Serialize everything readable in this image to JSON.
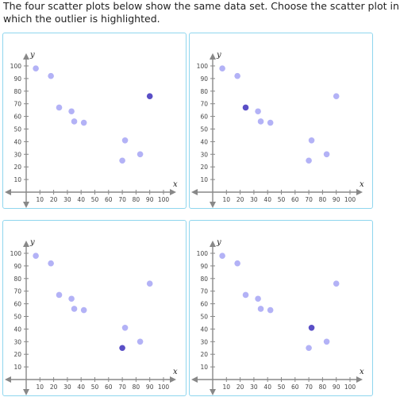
{
  "prompt": "The four scatter plots below show the same data set. Choose the scatter plot in which the outlier is highlighted.",
  "colors": {
    "point": "#b3b2f6",
    "highlight": "#5a4fc6",
    "axis": "#888888",
    "card_border": "#8fd6ee"
  },
  "chart_data": [
    {
      "type": "scatter",
      "id": "a",
      "xlabel": "x",
      "ylabel": "y",
      "xlim": [
        0,
        100
      ],
      "ylim": [
        0,
        100
      ],
      "xticks": [
        10,
        20,
        30,
        40,
        50,
        60,
        70,
        80,
        90,
        100
      ],
      "yticks": [
        10,
        20,
        30,
        40,
        50,
        60,
        70,
        80,
        90,
        100
      ],
      "points": [
        [
          7,
          98
        ],
        [
          18,
          92
        ],
        [
          24,
          67
        ],
        [
          33,
          64
        ],
        [
          35,
          56
        ],
        [
          42,
          55
        ],
        [
          70,
          25
        ],
        [
          72,
          41
        ],
        [
          83,
          30
        ],
        [
          90,
          76
        ]
      ],
      "highlight_index": 9
    },
    {
      "type": "scatter",
      "id": "b",
      "xlabel": "x",
      "ylabel": "y",
      "xlim": [
        0,
        100
      ],
      "ylim": [
        0,
        100
      ],
      "xticks": [
        10,
        20,
        30,
        40,
        50,
        60,
        70,
        80,
        90,
        100
      ],
      "yticks": [
        10,
        20,
        30,
        40,
        50,
        60,
        70,
        80,
        90,
        100
      ],
      "points": [
        [
          7,
          98
        ],
        [
          18,
          92
        ],
        [
          24,
          67
        ],
        [
          33,
          64
        ],
        [
          35,
          56
        ],
        [
          42,
          55
        ],
        [
          70,
          25
        ],
        [
          72,
          41
        ],
        [
          83,
          30
        ],
        [
          90,
          76
        ]
      ],
      "highlight_index": 2
    },
    {
      "type": "scatter",
      "id": "c",
      "xlabel": "x",
      "ylabel": "y",
      "xlim": [
        0,
        100
      ],
      "ylim": [
        0,
        100
      ],
      "xticks": [
        10,
        20,
        30,
        40,
        50,
        60,
        70,
        80,
        90,
        100
      ],
      "yticks": [
        10,
        20,
        30,
        40,
        50,
        60,
        70,
        80,
        90,
        100
      ],
      "points": [
        [
          7,
          98
        ],
        [
          18,
          92
        ],
        [
          24,
          67
        ],
        [
          33,
          64
        ],
        [
          35,
          56
        ],
        [
          42,
          55
        ],
        [
          70,
          25
        ],
        [
          72,
          41
        ],
        [
          83,
          30
        ],
        [
          90,
          76
        ]
      ],
      "highlight_index": 6
    },
    {
      "type": "scatter",
      "id": "d",
      "xlabel": "x",
      "ylabel": "y",
      "xlim": [
        0,
        100
      ],
      "ylim": [
        0,
        100
      ],
      "xticks": [
        10,
        20,
        30,
        40,
        50,
        60,
        70,
        80,
        90,
        100
      ],
      "yticks": [
        10,
        20,
        30,
        40,
        50,
        60,
        70,
        80,
        90,
        100
      ],
      "points": [
        [
          7,
          98
        ],
        [
          18,
          92
        ],
        [
          24,
          67
        ],
        [
          33,
          64
        ],
        [
          35,
          56
        ],
        [
          42,
          55
        ],
        [
          70,
          25
        ],
        [
          72,
          41
        ],
        [
          83,
          30
        ],
        [
          90,
          76
        ]
      ],
      "highlight_index": 7
    }
  ]
}
